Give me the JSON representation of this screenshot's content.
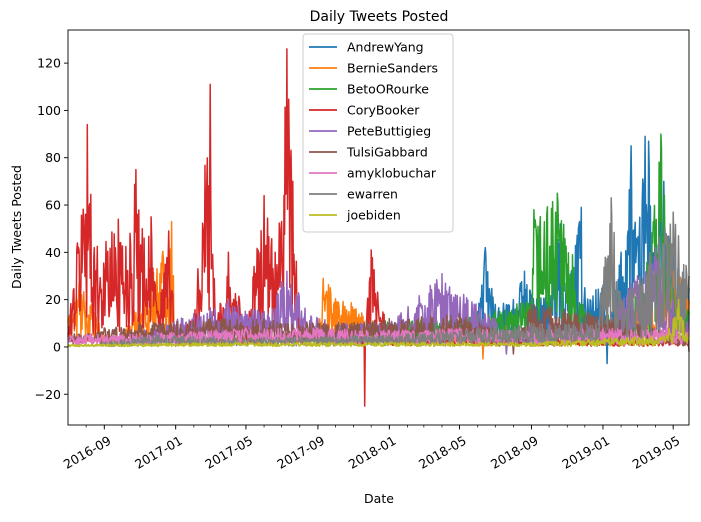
{
  "chart_data": {
    "type": "line",
    "title": "Daily Tweets Posted",
    "xlabel": "Date",
    "ylabel": "Daily Tweets Posted",
    "x_range": [
      "2016-07-01",
      "2019-05-28"
    ],
    "ylim": [
      -33,
      134
    ],
    "yticks": [
      -20,
      0,
      20,
      40,
      60,
      80,
      100,
      120
    ],
    "xticks": [
      {
        "date": "2016-09-01",
        "label": "2016-09"
      },
      {
        "date": "2017-01-01",
        "label": "2017-01"
      },
      {
        "date": "2017-05-01",
        "label": "2017-05"
      },
      {
        "date": "2017-09-01",
        "label": "2017-09"
      },
      {
        "date": "2018-01-01",
        "label": "2018-01"
      },
      {
        "date": "2018-05-01",
        "label": "2018-05"
      },
      {
        "date": "2018-09-01",
        "label": "2018-09"
      },
      {
        "date": "2019-01-01",
        "label": "2019-01"
      },
      {
        "date": "2019-05-01",
        "label": "2019-05"
      }
    ],
    "grid": false,
    "legend_position": "upper-center",
    "series": [
      {
        "name": "AndrewYang",
        "color": "#1f77b4",
        "start": "2018-03-01",
        "end": "2019-05-28",
        "points": [
          [
            "2018-03-01",
            8
          ],
          [
            "2018-04-01",
            10
          ],
          [
            "2018-05-01",
            12
          ],
          [
            "2018-06-01",
            15
          ],
          [
            "2018-06-14",
            42
          ],
          [
            "2018-07-01",
            18
          ],
          [
            "2018-08-01",
            20
          ],
          [
            "2018-08-20",
            32
          ],
          [
            "2018-09-01",
            22
          ],
          [
            "2018-10-01",
            24
          ],
          [
            "2018-10-20",
            52
          ],
          [
            "2018-11-01",
            26
          ],
          [
            "2018-11-25",
            59
          ],
          [
            "2018-12-01",
            25
          ],
          [
            "2019-01-01",
            26
          ],
          [
            "2019-01-08",
            -7
          ],
          [
            "2019-02-01",
            40
          ],
          [
            "2019-02-18",
            85
          ],
          [
            "2019-03-01",
            45
          ],
          [
            "2019-03-14",
            89
          ],
          [
            "2019-03-20",
            87
          ],
          [
            "2019-04-01",
            50
          ],
          [
            "2019-04-15",
            70
          ],
          [
            "2019-05-01",
            40
          ],
          [
            "2019-05-28",
            25
          ]
        ]
      },
      {
        "name": "BernieSanders",
        "color": "#ff7f0e",
        "start": "2016-07-01",
        "end": "2019-05-28",
        "points": [
          [
            "2016-07-01",
            12
          ],
          [
            "2016-07-20",
            27
          ],
          [
            "2016-08-10",
            18
          ],
          [
            "2016-09-01",
            5
          ],
          [
            "2016-10-01",
            4
          ],
          [
            "2016-12-25",
            53
          ],
          [
            "2017-01-01",
            4
          ],
          [
            "2017-05-01",
            5
          ],
          [
            "2017-09-01",
            6
          ],
          [
            "2017-09-10",
            29
          ],
          [
            "2018-01-01",
            6
          ],
          [
            "2018-05-01",
            6
          ],
          [
            "2018-06-10",
            -5
          ],
          [
            "2018-09-01",
            6
          ],
          [
            "2019-01-01",
            6
          ],
          [
            "2019-05-10",
            38
          ],
          [
            "2019-05-28",
            20
          ]
        ]
      },
      {
        "name": "BetoORourke",
        "color": "#2ca02c",
        "start": "2017-12-01",
        "end": "2019-05-28",
        "points": [
          [
            "2017-12-01",
            10
          ],
          [
            "2018-03-01",
            12
          ],
          [
            "2018-06-01",
            14
          ],
          [
            "2018-09-01",
            20
          ],
          [
            "2018-09-05",
            58
          ],
          [
            "2018-10-15",
            65
          ],
          [
            "2018-11-10",
            39
          ],
          [
            "2018-12-01",
            15
          ],
          [
            "2019-01-01",
            12
          ],
          [
            "2019-03-10",
            25
          ],
          [
            "2019-04-10",
            90
          ],
          [
            "2019-05-01",
            25
          ],
          [
            "2019-05-28",
            15
          ]
        ]
      },
      {
        "name": "CoryBooker",
        "color": "#d62728",
        "start": "2016-07-01",
        "end": "2019-05-28",
        "points": [
          [
            "2016-07-01",
            6
          ],
          [
            "2016-08-03",
            94
          ],
          [
            "2016-08-15",
            42
          ],
          [
            "2016-09-25",
            54
          ],
          [
            "2016-10-15",
            48
          ],
          [
            "2016-10-25",
            75
          ],
          [
            "2016-11-05",
            50
          ],
          [
            "2016-11-20",
            55
          ],
          [
            "2016-12-01",
            15
          ],
          [
            "2016-12-20",
            49
          ],
          [
            "2017-01-01",
            6
          ],
          [
            "2017-02-01",
            12
          ],
          [
            "2017-03-01",
            111
          ],
          [
            "2017-03-10",
            10
          ],
          [
            "2017-04-01",
            40
          ],
          [
            "2017-05-01",
            10
          ],
          [
            "2017-06-01",
            64
          ],
          [
            "2017-06-20",
            40
          ],
          [
            "2017-07-10",
            126
          ],
          [
            "2017-07-20",
            70
          ],
          [
            "2017-08-01",
            10
          ],
          [
            "2017-09-01",
            6
          ],
          [
            "2017-11-20",
            -25
          ],
          [
            "2017-12-01",
            41
          ],
          [
            "2018-01-01",
            5
          ],
          [
            "2018-03-01",
            5
          ],
          [
            "2018-06-01",
            4
          ],
          [
            "2018-09-01",
            3
          ],
          [
            "2019-01-01",
            3
          ],
          [
            "2019-05-28",
            3
          ]
        ]
      },
      {
        "name": "PeteButtigieg",
        "color": "#9467bd",
        "start": "2016-10-01",
        "end": "2019-05-28",
        "points": [
          [
            "2016-10-01",
            5
          ],
          [
            "2017-02-01",
            14
          ],
          [
            "2017-04-01",
            20
          ],
          [
            "2017-06-01",
            15
          ],
          [
            "2017-07-10",
            32
          ],
          [
            "2017-09-01",
            12
          ],
          [
            "2018-01-01",
            10
          ],
          [
            "2018-04-01",
            31
          ],
          [
            "2018-07-01",
            12
          ],
          [
            "2018-07-20",
            -3
          ],
          [
            "2018-09-01",
            10
          ],
          [
            "2019-01-01",
            10
          ],
          [
            "2019-04-01",
            42
          ],
          [
            "2019-05-01",
            20
          ],
          [
            "2019-05-28",
            12
          ]
        ]
      },
      {
        "name": "TulsiGabbard",
        "color": "#8c564b",
        "start": "2016-07-01",
        "end": "2019-05-28",
        "points": [
          [
            "2016-07-01",
            5
          ],
          [
            "2016-09-01",
            8
          ],
          [
            "2016-11-01",
            10
          ],
          [
            "2017-03-01",
            12
          ],
          [
            "2017-06-01",
            12
          ],
          [
            "2017-09-01",
            10
          ],
          [
            "2018-01-01",
            12
          ],
          [
            "2018-05-01",
            14
          ],
          [
            "2018-08-01",
            -3
          ],
          [
            "2018-09-01",
            18
          ],
          [
            "2019-01-01",
            14
          ],
          [
            "2019-05-28",
            -2
          ]
        ]
      },
      {
        "name": "amyklobuchar",
        "color": "#e377c2",
        "start": "2016-07-01",
        "end": "2019-05-28",
        "points": [
          [
            "2016-07-01",
            5
          ],
          [
            "2016-12-01",
            6
          ],
          [
            "2017-05-01",
            8
          ],
          [
            "2017-09-01",
            8
          ],
          [
            "2018-01-01",
            7
          ],
          [
            "2018-05-01",
            8
          ],
          [
            "2018-09-01",
            7
          ],
          [
            "2019-01-01",
            8
          ],
          [
            "2019-05-28",
            8
          ]
        ]
      },
      {
        "name": "ewarren",
        "color": "#7f7f7f",
        "start": "2016-08-25",
        "end": "2019-05-28",
        "points": [
          [
            "2016-08-25",
            2
          ],
          [
            "2016-12-01",
            5
          ],
          [
            "2017-06-01",
            4
          ],
          [
            "2018-01-01",
            5
          ],
          [
            "2018-06-01",
            8
          ],
          [
            "2018-09-01",
            10
          ],
          [
            "2018-12-20",
            10
          ],
          [
            "2019-01-15",
            63
          ],
          [
            "2019-02-01",
            20
          ],
          [
            "2019-05-01",
            57
          ],
          [
            "2019-05-28",
            30
          ]
        ]
      },
      {
        "name": "joebiden",
        "color": "#bcbd22",
        "start": "2016-07-01",
        "end": "2019-05-28",
        "points": [
          [
            "2016-07-01",
            1
          ],
          [
            "2017-05-01",
            2
          ],
          [
            "2018-01-01",
            2
          ],
          [
            "2018-09-01",
            2
          ],
          [
            "2019-04-20",
            5
          ],
          [
            "2019-05-10",
            20
          ],
          [
            "2019-05-28",
            5
          ]
        ]
      }
    ]
  }
}
